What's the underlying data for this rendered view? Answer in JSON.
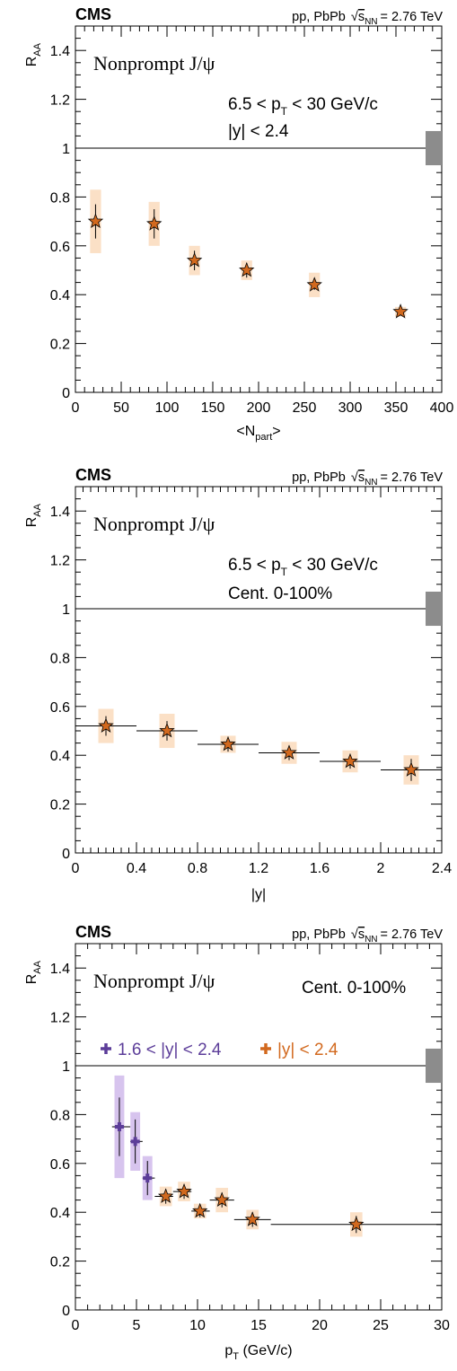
{
  "colors": {
    "orange_marker": "#d2691e",
    "orange_box": "#fbe0c6",
    "violet_marker": "#5c3d99",
    "violet_box": "#d7c4ee",
    "global_box": "#8c8c8c"
  },
  "chart_data": [
    {
      "type": "scatter",
      "experiment": "CMS",
      "system": "pp, PbPb",
      "energy_label": "s",
      "energy_sub": "NN",
      "energy_value": "= 2.76 TeV",
      "title": "Nonprompt J/ψ",
      "annotations": [
        {
          "a": "6.5 < p",
          "sub": "T",
          "b": " < 30 GeV/c"
        },
        {
          "a": "|y| < 2.4",
          "sub": "",
          "b": ""
        }
      ],
      "ylabel": "R",
      "ylabel_sub": "AA",
      "xlabel": "<N",
      "xlabel_sub": "part",
      "xlabel_end": ">",
      "xlim": [
        0,
        400
      ],
      "ylim": [
        0,
        1.5
      ],
      "xticks": [
        0,
        50,
        100,
        150,
        200,
        250,
        300,
        350,
        400
      ],
      "xtick_labels": [
        "0",
        "50",
        "100",
        "150",
        "200",
        "250",
        "300",
        "350",
        "400"
      ],
      "yticks": [
        0,
        0.2,
        0.4,
        0.6,
        0.8,
        1,
        1.2,
        1.4
      ],
      "ytick_labels": [
        "0",
        "0.2",
        "0.4",
        "0.6",
        "0.8",
        "1",
        "1.2",
        "1.4"
      ],
      "reference_line": 1,
      "global_uncertainty": 0.07,
      "series": [
        {
          "label": "|y| < 2.4",
          "color": "#d2691e",
          "box_color": "#fbe0c6",
          "marker": "star",
          "points": [
            {
              "x": 22,
              "y": 0.7,
              "err": 0.07,
              "sys": 0.13,
              "sysw": 6
            },
            {
              "x": 86,
              "y": 0.69,
              "err": 0.06,
              "sys": 0.09,
              "sysw": 6
            },
            {
              "x": 130,
              "y": 0.54,
              "err": 0.04,
              "sys": 0.06,
              "sysw": 6
            },
            {
              "x": 187,
              "y": 0.5,
              "err": 0.03,
              "sys": 0.04,
              "sysw": 6
            },
            {
              "x": 261,
              "y": 0.44,
              "err": 0.02,
              "sys": 0.05,
              "sysw": 6
            },
            {
              "x": 355,
              "y": 0.33,
              "err": 0.015,
              "sys": 0.02,
              "sysw": 6
            }
          ]
        }
      ]
    },
    {
      "type": "scatter",
      "experiment": "CMS",
      "system": "pp, PbPb",
      "energy_label": "s",
      "energy_sub": "NN",
      "energy_value": "= 2.76 TeV",
      "title": "Nonprompt J/ψ",
      "annotations": [
        {
          "a": "6.5 < p",
          "sub": "T",
          "b": " < 30 GeV/c"
        },
        {
          "a": "Cent. 0-100%",
          "sub": "",
          "b": ""
        }
      ],
      "ylabel": "R",
      "ylabel_sub": "AA",
      "xlabel": "|y|",
      "xlabel_sub": "",
      "xlabel_end": "",
      "xlim": [
        0,
        2.4
      ],
      "ylim": [
        0,
        1.5
      ],
      "xticks": [
        0,
        0.4,
        0.8,
        1.2,
        1.6,
        2,
        2.4
      ],
      "xtick_labels": [
        "0",
        "0.4",
        "0.8",
        "1.2",
        "1.6",
        "2",
        "2.4"
      ],
      "yticks": [
        0,
        0.2,
        0.4,
        0.6,
        0.8,
        1,
        1.2,
        1.4
      ],
      "ytick_labels": [
        "0",
        "0.2",
        "0.4",
        "0.6",
        "0.8",
        "1",
        "1.2",
        "1.4"
      ],
      "reference_line": 1,
      "global_uncertainty": 0.07,
      "series": [
        {
          "label": "Cent. 0-100%",
          "color": "#d2691e",
          "box_color": "#fbe0c6",
          "marker": "star",
          "points": [
            {
              "x": 0.2,
              "y": 0.52,
              "xlo": 0.0,
              "xhi": 0.4,
              "err": 0.04,
              "sys": 0.07,
              "sysw": 0.05
            },
            {
              "x": 0.6,
              "y": 0.5,
              "xlo": 0.4,
              "xhi": 0.8,
              "err": 0.04,
              "sys": 0.07,
              "sysw": 0.05
            },
            {
              "x": 1.0,
              "y": 0.445,
              "xlo": 0.8,
              "xhi": 1.2,
              "err": 0.03,
              "sys": 0.035,
              "sysw": 0.05
            },
            {
              "x": 1.4,
              "y": 0.41,
              "xlo": 1.2,
              "xhi": 1.6,
              "err": 0.03,
              "sys": 0.045,
              "sysw": 0.05
            },
            {
              "x": 1.8,
              "y": 0.375,
              "xlo": 1.6,
              "xhi": 2.0,
              "err": 0.03,
              "sys": 0.045,
              "sysw": 0.05
            },
            {
              "x": 2.2,
              "y": 0.34,
              "xlo": 2.0,
              "xhi": 2.4,
              "err": 0.045,
              "sys": 0.06,
              "sysw": 0.05
            }
          ]
        }
      ]
    },
    {
      "type": "scatter",
      "experiment": "CMS",
      "system": "pp, PbPb",
      "energy_label": "s",
      "energy_sub": "NN",
      "energy_value": "= 2.76 TeV",
      "title": "Nonprompt J/ψ",
      "annotations": [
        {
          "a": "Cent. 0-100%",
          "sub": "",
          "b": ""
        }
      ],
      "legend": [
        "1.6 < |y| < 2.4",
        "|y| < 2.4"
      ],
      "ylabel": "R",
      "ylabel_sub": "AA",
      "xlabel": "p",
      "xlabel_sub": "T",
      "xlabel_end": " (GeV/c)",
      "xlim": [
        0,
        30
      ],
      "ylim": [
        0,
        1.5
      ],
      "xticks": [
        0,
        5,
        10,
        15,
        20,
        25,
        30
      ],
      "xtick_labels": [
        "0",
        "5",
        "10",
        "15",
        "20",
        "25",
        "30"
      ],
      "yticks": [
        0,
        0.2,
        0.4,
        0.6,
        0.8,
        1,
        1.2,
        1.4
      ],
      "ytick_labels": [
        "0",
        "0.2",
        "0.4",
        "0.6",
        "0.8",
        "1",
        "1.2",
        "1.4"
      ],
      "reference_line": 1,
      "global_uncertainty": 0.07,
      "series": [
        {
          "label": "1.6 < |y| < 2.4",
          "color": "#5c3d99",
          "box_color": "#d7c4ee",
          "marker": "cross",
          "points": [
            {
              "x": 3.6,
              "y": 0.75,
              "xlo": 3.0,
              "xhi": 4.5,
              "err": 0.12,
              "sys": 0.21,
              "sysw": 0.4
            },
            {
              "x": 4.9,
              "y": 0.69,
              "xlo": 4.5,
              "xhi": 5.5,
              "err": 0.09,
              "sys": 0.12,
              "sysw": 0.4
            },
            {
              "x": 5.9,
              "y": 0.54,
              "xlo": 5.5,
              "xhi": 6.5,
              "err": 0.07,
              "sys": 0.09,
              "sysw": 0.4
            }
          ]
        },
        {
          "label": "|y| < 2.4",
          "color": "#d2691e",
          "box_color": "#fbe0c6",
          "marker": "star",
          "points": [
            {
              "x": 7.4,
              "y": 0.465,
              "xlo": 6.5,
              "xhi": 8.0,
              "err": 0.03,
              "sys": 0.04,
              "sysw": 0.5
            },
            {
              "x": 8.9,
              "y": 0.485,
              "xlo": 8.0,
              "xhi": 9.5,
              "err": 0.03,
              "sys": 0.04,
              "sysw": 0.5
            },
            {
              "x": 10.2,
              "y": 0.405,
              "xlo": 9.5,
              "xhi": 11.0,
              "err": 0.025,
              "sys": 0.03,
              "sysw": 0.5
            },
            {
              "x": 12.0,
              "y": 0.45,
              "xlo": 11.0,
              "xhi": 13.0,
              "err": 0.03,
              "sys": 0.05,
              "sysw": 0.5
            },
            {
              "x": 14.5,
              "y": 0.37,
              "xlo": 13.0,
              "xhi": 16.0,
              "err": 0.03,
              "sys": 0.04,
              "sysw": 0.5
            },
            {
              "x": 23.0,
              "y": 0.35,
              "xlo": 16.0,
              "xhi": 30.0,
              "err": 0.035,
              "sys": 0.05,
              "sysw": 0.5
            }
          ]
        }
      ]
    }
  ]
}
